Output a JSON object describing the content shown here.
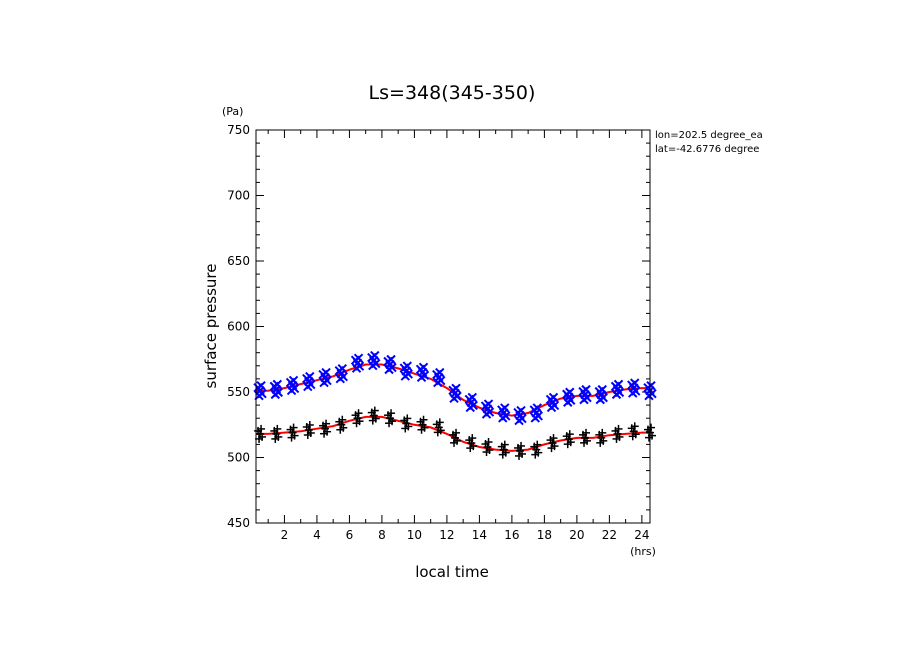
{
  "chart_data": {
    "type": "scatter",
    "title": "Ls=348(345-350)",
    "ylabel": "surface pressure",
    "yunit": "(Pa)",
    "xlabel": "local time",
    "xunit": "(hrs)",
    "annotation": [
      "lon=202.5 degree_ea",
      "lat=-42.6776 degree"
    ],
    "xlim": [
      0.25,
      24.5
    ],
    "ylim": [
      450,
      750
    ],
    "xticks": [
      2,
      4,
      6,
      8,
      10,
      12,
      14,
      16,
      18,
      20,
      22,
      24
    ],
    "yticks": [
      450,
      500,
      550,
      600,
      650,
      700,
      750
    ],
    "grid": false,
    "legend": "none",
    "colors": {
      "upper_markers": "#0000ff",
      "lower_markers": "#000000",
      "fit_line": "#ff0000",
      "axes": "#000000"
    },
    "series": [
      {
        "marker": "x",
        "color": "#0000ff",
        "x": [
          0.5,
          1.5,
          2.5,
          3.5,
          4.5,
          5.5,
          6.5,
          7.5,
          8.5,
          9.5,
          10.5,
          11.5,
          12.5,
          13.5,
          14.5,
          15.5,
          16.5,
          17.5,
          18.5,
          19.5,
          20.5,
          21.5,
          22.5,
          23.5,
          24.5
        ],
        "y": [
          551,
          552,
          555,
          558,
          561,
          564,
          572,
          574,
          571,
          566,
          565,
          561,
          549,
          542,
          537,
          534,
          532,
          534,
          542,
          546,
          548,
          548,
          552,
          553,
          551
        ]
      },
      {
        "marker": "+",
        "color": "#000000",
        "x": [
          0.5,
          1.5,
          2.5,
          3.5,
          4.5,
          5.5,
          6.5,
          7.5,
          8.5,
          9.5,
          10.5,
          11.5,
          12.5,
          13.5,
          14.5,
          15.5,
          16.5,
          17.5,
          18.5,
          19.5,
          20.5,
          21.5,
          22.5,
          23.5,
          24.5
        ],
        "y": [
          518,
          518,
          519,
          521,
          522,
          525,
          530,
          532,
          530,
          526,
          525,
          523,
          515,
          511,
          508,
          506,
          505,
          506,
          511,
          514,
          515,
          515,
          518,
          520,
          519
        ]
      }
    ],
    "fit_lines": [
      {
        "color": "#ff0000",
        "x": [
          0.25,
          1,
          2,
          3,
          4,
          5,
          6,
          7,
          8,
          9,
          10,
          11,
          12,
          13,
          14,
          15,
          16,
          17,
          18,
          19,
          20,
          21,
          22,
          23,
          24,
          24.5
        ],
        "y": [
          551,
          551,
          553,
          556,
          559,
          562,
          567,
          571,
          571,
          568,
          564,
          560,
          553,
          544,
          538,
          534,
          532,
          534,
          540,
          545,
          547,
          547,
          550,
          552,
          553,
          553
        ]
      },
      {
        "color": "#ff0000",
        "x": [
          0.25,
          1,
          2,
          3,
          4,
          5,
          6,
          7,
          8,
          9,
          10,
          11,
          12,
          13,
          14,
          15,
          16,
          17,
          18,
          19,
          20,
          21,
          22,
          23,
          24,
          24.5
        ],
        "y": [
          518,
          518,
          519,
          520,
          522,
          524,
          528,
          531,
          531,
          528,
          525,
          523,
          518,
          512,
          508,
          506,
          505,
          506,
          510,
          513,
          515,
          515,
          517,
          518,
          519,
          519
        ]
      }
    ]
  }
}
